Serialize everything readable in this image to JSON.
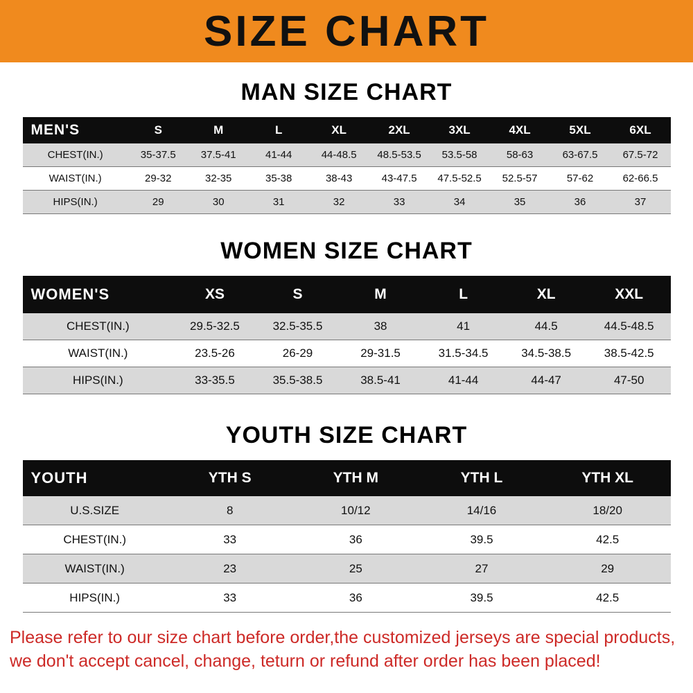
{
  "banner": {
    "title": "SIZE CHART",
    "bg_color": "#f08a1e"
  },
  "sections": [
    {
      "heading": "MAN SIZE CHART",
      "table": {
        "header_label": "MEN'S",
        "columns": [
          "S",
          "M",
          "L",
          "XL",
          "2XL",
          "3XL",
          "4XL",
          "5XL",
          "6XL"
        ],
        "rows": [
          {
            "label": "CHEST(IN.)",
            "values": [
              "35-37.5",
              "37.5-41",
              "41-44",
              "44-48.5",
              "48.5-53.5",
              "53.5-58",
              "58-63",
              "63-67.5",
              "67.5-72"
            ]
          },
          {
            "label": "WAIST(IN.)",
            "values": [
              "29-32",
              "32-35",
              "35-38",
              "38-43",
              "43-47.5",
              "47.5-52.5",
              "52.5-57",
              "57-62",
              "62-66.5"
            ]
          },
          {
            "label": "HIPS(IN.)",
            "values": [
              "29",
              "30",
              "31",
              "32",
              "33",
              "34",
              "35",
              "36",
              "37"
            ]
          }
        ]
      }
    },
    {
      "heading": "WOMEN SIZE CHART",
      "table": {
        "header_label": "WOMEN'S",
        "columns": [
          "XS",
          "S",
          "M",
          "L",
          "XL",
          "XXL"
        ],
        "rows": [
          {
            "label": "CHEST(IN.)",
            "values": [
              "29.5-32.5",
              "32.5-35.5",
              "38",
              "41",
              "44.5",
              "44.5-48.5"
            ]
          },
          {
            "label": "WAIST(IN.)",
            "values": [
              "23.5-26",
              "26-29",
              "29-31.5",
              "31.5-34.5",
              "34.5-38.5",
              "38.5-42.5"
            ]
          },
          {
            "label": "HIPS(IN.)",
            "values": [
              "33-35.5",
              "35.5-38.5",
              "38.5-41",
              "41-44",
              "44-47",
              "47-50"
            ]
          }
        ]
      }
    },
    {
      "heading": "YOUTH SIZE CHART",
      "table": {
        "header_label": "YOUTH",
        "columns": [
          "YTH S",
          "YTH M",
          "YTH L",
          "YTH XL"
        ],
        "rows": [
          {
            "label": "U.S.SIZE",
            "values": [
              "8",
              "10/12",
              "14/16",
              "18/20"
            ]
          },
          {
            "label": "CHEST(IN.)",
            "values": [
              "33",
              "36",
              "39.5",
              "42.5"
            ]
          },
          {
            "label": "WAIST(IN.)",
            "values": [
              "23",
              "25",
              "27",
              "29"
            ]
          },
          {
            "label": "HIPS(IN.)",
            "values": [
              "33",
              "36",
              "39.5",
              "42.5"
            ]
          }
        ]
      }
    }
  ],
  "footer": {
    "line1": "Please refer to our size chart before order,the customized jerseys are special products,",
    "line2": "we don't accept cancel, change, teturn or refund after order has been placed!",
    "text_color": "#cd2a27"
  }
}
